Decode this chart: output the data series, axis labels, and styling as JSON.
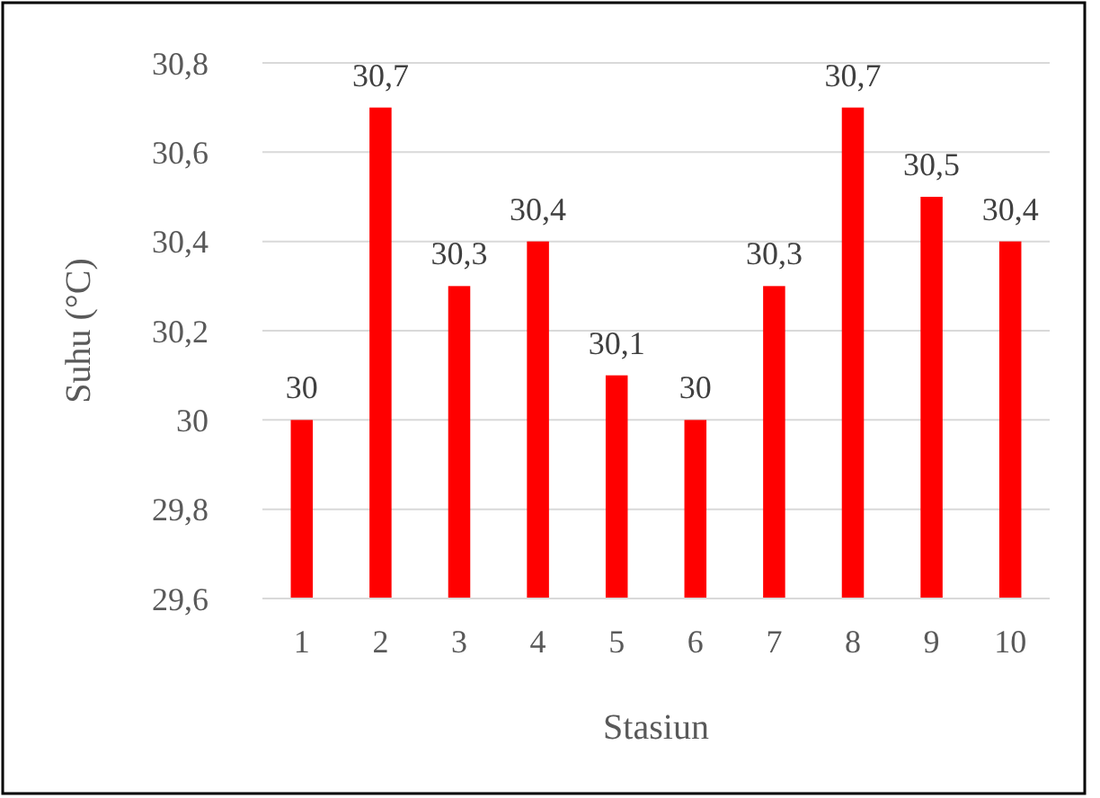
{
  "chart_data": {
    "type": "bar",
    "xlabel": "Stasiun",
    "ylabel": "Suhu (°C)",
    "categories": [
      "1",
      "2",
      "3",
      "4",
      "5",
      "6",
      "7",
      "8",
      "9",
      "10"
    ],
    "values": [
      30,
      30.7,
      30.3,
      30.4,
      30.1,
      30,
      30.3,
      30.7,
      30.5,
      30.4
    ],
    "value_labels": [
      "30",
      "30,7",
      "30,3",
      "30,4",
      "30,1",
      "30",
      "30,3",
      "30,7",
      "30,5",
      "30,4"
    ],
    "color": "#ff0000",
    "ylim": [
      29.6,
      30.8
    ],
    "yticks": [
      {
        "value": 29.6,
        "label": "29,6"
      },
      {
        "value": 29.8,
        "label": "29,8"
      },
      {
        "value": 30,
        "label": "30"
      },
      {
        "value": 30.2,
        "label": "30,2"
      },
      {
        "value": 30.4,
        "label": "30,4"
      },
      {
        "value": 30.6,
        "label": "30,6"
      },
      {
        "value": 30.8,
        "label": "30,8"
      }
    ],
    "grid": "y"
  }
}
